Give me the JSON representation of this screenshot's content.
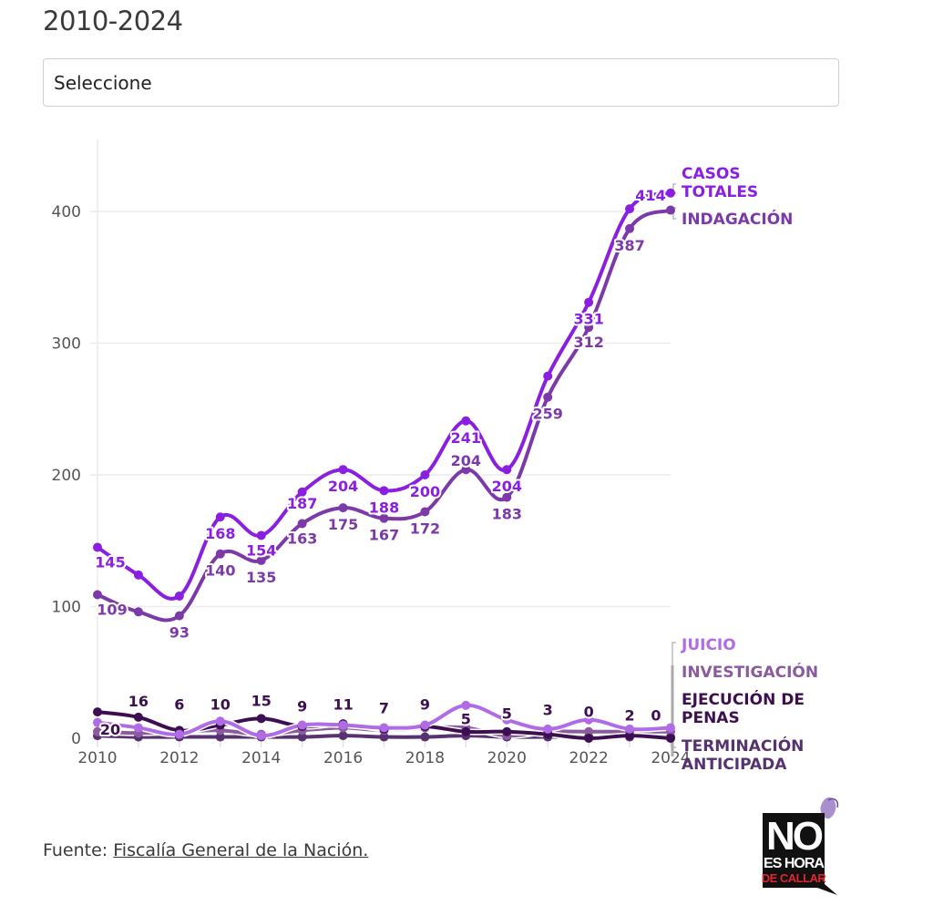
{
  "header": {
    "subtitle": "2010-2024",
    "select_placeholder": "Seleccione"
  },
  "footer": {
    "source_prefix": "Fuente:",
    "source_link": "Fiscalía General de la Nación."
  },
  "logo": {
    "line1": "NO",
    "line2": "ES HORA",
    "line3": "DE CALLAR",
    "icon": "butterfly-icon"
  },
  "colors": {
    "casos": "#8a1fe0",
    "indagacion": "#7b3aa8",
    "juicio": "#b06be6",
    "investigacion": "#8c5a9e",
    "ejecucion": "#3d0f50",
    "terminacion": "#563270",
    "grid": "#ececec",
    "logo_bg": "#111111",
    "logo_red": "#e0262c"
  },
  "chart_data": {
    "type": "line",
    "title": "",
    "xlabel": "",
    "ylabel": "",
    "x": [
      2010,
      2011,
      2012,
      2013,
      2014,
      2015,
      2016,
      2017,
      2018,
      2019,
      2020,
      2021,
      2022,
      2023,
      2024
    ],
    "xticks": [
      "2010",
      "2012",
      "2014",
      "2016",
      "2018",
      "2020",
      "2022",
      "2024"
    ],
    "yticks": [
      "0",
      "100",
      "200",
      "300",
      "400"
    ],
    "ylim": [
      0,
      450
    ],
    "grid": true,
    "legend_placement": "right (direct labels at line ends)",
    "series": [
      {
        "key": "casos",
        "name": "CASOS TOTALES",
        "name_lines": [
          "CASOS",
          "TOTALES"
        ],
        "values": [
          145,
          124,
          108,
          168,
          154,
          187,
          204,
          188,
          200,
          241,
          204,
          275,
          331,
          402,
          414
        ],
        "labels": [
          "145",
          "",
          "",
          "168",
          "154",
          "187",
          "204",
          "188",
          "200",
          "241",
          "204",
          "",
          "331",
          "",
          "414"
        ]
      },
      {
        "key": "indagacion",
        "name": "INDAGACIÓN",
        "name_lines": [
          "INDAGACIÓN"
        ],
        "values": [
          109,
          96,
          93,
          140,
          135,
          163,
          175,
          167,
          172,
          204,
          183,
          259,
          312,
          387,
          401
        ],
        "labels": [
          "109",
          "",
          "93",
          "140",
          "135",
          "163",
          "175",
          "167",
          "172",
          "204",
          "183",
          "259",
          "312",
          "387",
          ""
        ]
      },
      {
        "key": "juicio",
        "name": "JUICIO",
        "name_lines": [
          "JUICIO"
        ],
        "values": [
          12,
          8,
          3,
          13,
          2,
          10,
          10,
          8,
          10,
          25,
          14,
          7,
          14,
          7,
          8
        ],
        "labels": [
          "",
          "",
          "",
          "",
          "",
          "",
          "",
          "",
          "",
          "",
          "",
          "",
          "",
          "",
          ""
        ]
      },
      {
        "key": "investigacion",
        "name": "INVESTIGACIÓN",
        "name_lines": [
          "INVESTIGACIÓN"
        ],
        "values": [
          5,
          4,
          5,
          6,
          3,
          6,
          8,
          6,
          8,
          8,
          2,
          5,
          5,
          5,
          5
        ],
        "labels": [
          "",
          "",
          "",
          "",
          "",
          "",
          "",
          "",
          "",
          "",
          "",
          "",
          "",
          "",
          ""
        ]
      },
      {
        "key": "ejecucion",
        "name": "EJECUCIÓN DE PENAS",
        "name_lines": [
          "EJECUCIÓN DE",
          "PENAS"
        ],
        "values": [
          20,
          16,
          6,
          10,
          15,
          9,
          11,
          7,
          9,
          5,
          5,
          3,
          0,
          2,
          0
        ],
        "labels": [
          "20",
          "16",
          "6",
          "10",
          "15",
          "9",
          "11",
          "7",
          "9",
          "5",
          "5",
          "3",
          "0",
          "2",
          "0"
        ]
      },
      {
        "key": "terminacion",
        "name": "TERMINACIÓN ANTICIPADA",
        "name_lines": [
          "TERMINACIÓN",
          "ANTICIPADA"
        ],
        "values": [
          2,
          1,
          1,
          1,
          1,
          1,
          2,
          1,
          1,
          2,
          1,
          1,
          1,
          1,
          1
        ],
        "labels": [
          "",
          "",
          "",
          "",
          "",
          "",
          "",
          "",
          "",
          "",
          "",
          "",
          "",
          "",
          ""
        ]
      }
    ]
  }
}
